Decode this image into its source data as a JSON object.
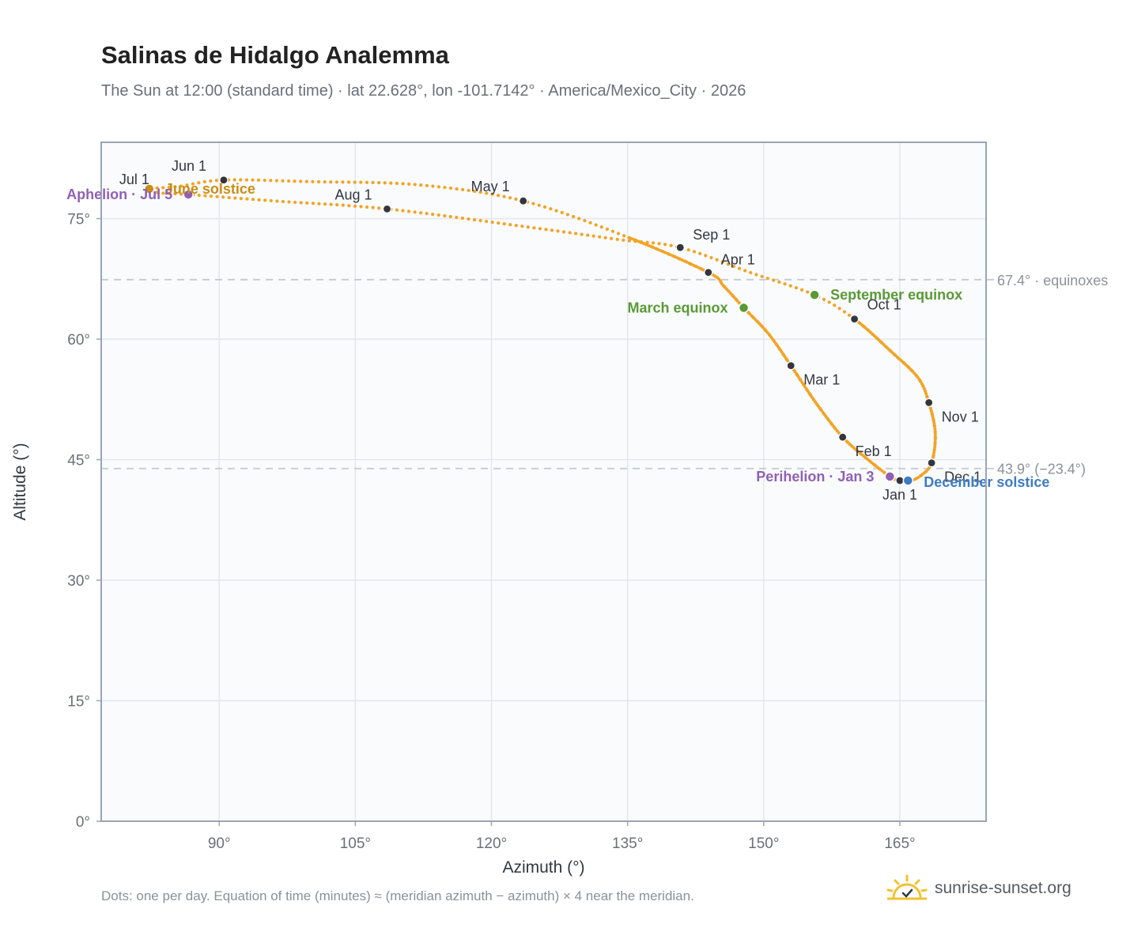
{
  "header": {
    "title": "Salinas de Hidalgo Analemma",
    "subtitle": "The Sun at 12:00 (standard time) · lat 22.628°, lon -101.7142° · America/Mexico_City · 2026"
  },
  "footer": {
    "note": "Dots: one per day. Equation of time (minutes) ≈ (meridian azimuth − azimuth) × 4 near the meridian.",
    "brand": "sunrise-sunset.org",
    "brand_icon": "sun-logo-icon"
  },
  "colors": {
    "curve": "#f2a427",
    "month_dot": "#33363d",
    "equinox": "#5a9a35",
    "december": "#3d7cc4",
    "june": "#c98e12",
    "perihelion": "#9060b5",
    "refline": "#c4cad3",
    "plot_bg": "#f9fbfd",
    "grid": "#e3e8ee",
    "frame": "#9aa5b4"
  },
  "chart_data": {
    "type": "scatter",
    "xlabel": "Azimuth (°)",
    "ylabel": "Altitude (°)",
    "xlim": [
      77.0,
      174.5
    ],
    "ylim": [
      0,
      84.5
    ],
    "x_ticks": [
      90,
      105,
      120,
      135,
      150,
      165
    ],
    "x_tick_labels": [
      "90°",
      "105°",
      "120°",
      "135°",
      "150°",
      "165°"
    ],
    "y_ticks": [
      0,
      15,
      30,
      45,
      60,
      75
    ],
    "y_tick_labels": [
      "0°",
      "15°",
      "30°",
      "45°",
      "60°",
      "75°"
    ],
    "grid": true,
    "path_points": [
      {
        "az": 165.0,
        "alt": 42.3
      },
      {
        "az": 163.9,
        "alt": 42.9
      },
      {
        "az": 161.5,
        "alt": 45.0
      },
      {
        "az": 158.7,
        "alt": 47.8
      },
      {
        "az": 155.8,
        "alt": 52.0
      },
      {
        "az": 153.0,
        "alt": 56.7
      },
      {
        "az": 150.5,
        "alt": 60.7
      },
      {
        "az": 147.8,
        "alt": 63.9
      },
      {
        "az": 145.6,
        "alt": 66.6
      },
      {
        "az": 143.9,
        "alt": 68.3
      },
      {
        "az": 135.0,
        "alt": 72.7
      },
      {
        "az": 123.5,
        "alt": 77.2
      },
      {
        "az": 112.0,
        "alt": 79.2
      },
      {
        "az": 100.0,
        "alt": 79.6
      },
      {
        "az": 90.5,
        "alt": 79.8
      },
      {
        "az": 85.5,
        "alt": 79.0
      },
      {
        "az": 82.3,
        "alt": 78.7
      },
      {
        "az": 83.5,
        "alt": 78.2
      },
      {
        "az": 86.6,
        "alt": 78.0
      },
      {
        "az": 96.0,
        "alt": 77.2
      },
      {
        "az": 108.5,
        "alt": 76.2
      },
      {
        "az": 125.0,
        "alt": 73.8
      },
      {
        "az": 134.0,
        "alt": 72.4
      },
      {
        "az": 140.8,
        "alt": 71.4
      },
      {
        "az": 148.5,
        "alt": 68.3
      },
      {
        "az": 155.6,
        "alt": 65.5
      },
      {
        "az": 160.0,
        "alt": 62.5
      },
      {
        "az": 164.0,
        "alt": 58.5
      },
      {
        "az": 167.0,
        "alt": 55.2
      },
      {
        "az": 168.2,
        "alt": 52.1
      },
      {
        "az": 168.9,
        "alt": 48.3
      },
      {
        "az": 168.5,
        "alt": 44.6
      },
      {
        "az": 167.3,
        "alt": 43.0
      },
      {
        "az": 166.0,
        "alt": 42.3
      },
      {
        "az": 165.0,
        "alt": 42.3
      }
    ],
    "reference_lines": [
      {
        "alt": 67.4,
        "label": "67.4° · equinoxes"
      },
      {
        "alt": 43.9,
        "label": "43.9° (−23.4°)"
      }
    ],
    "month_markers": [
      {
        "label": "Jan 1",
        "az": 165.0,
        "alt": 42.4,
        "pos": "below"
      },
      {
        "label": "Feb 1",
        "az": 158.7,
        "alt": 47.8,
        "pos": "right-below"
      },
      {
        "label": "Mar 1",
        "az": 153.0,
        "alt": 56.7,
        "pos": "right-below"
      },
      {
        "label": "Apr 1",
        "az": 143.9,
        "alt": 68.3,
        "pos": "right-above"
      },
      {
        "label": "May 1",
        "az": 123.5,
        "alt": 77.2,
        "pos": "left-above"
      },
      {
        "label": "Jun 1",
        "az": 90.5,
        "alt": 79.8,
        "pos": "left-above"
      },
      {
        "label": "Jul 1",
        "az": 82.3,
        "alt": 78.7,
        "pos": "left-above"
      },
      {
        "label": "Aug 1",
        "az": 108.5,
        "alt": 76.2,
        "pos": "left-above"
      },
      {
        "label": "Sep 1",
        "az": 140.8,
        "alt": 71.4,
        "pos": "right-above"
      },
      {
        "label": "Oct 1",
        "az": 160.0,
        "alt": 62.5,
        "pos": "right"
      },
      {
        "label": "Nov 1",
        "az": 168.2,
        "alt": 52.1,
        "pos": "right-below"
      },
      {
        "label": "Dec 1",
        "az": 168.5,
        "alt": 44.6,
        "pos": "right-below"
      }
    ],
    "events": [
      {
        "label": "March equinox",
        "az": 147.8,
        "alt": 63.9,
        "color_key": "equinox",
        "anchor": "end"
      },
      {
        "label": "September equinox",
        "az": 155.6,
        "alt": 65.5,
        "color_key": "equinox",
        "anchor": "start"
      },
      {
        "label": "December solstice",
        "az": 165.9,
        "alt": 42.4,
        "color_key": "december",
        "anchor": "start"
      },
      {
        "label": "June solstice",
        "az": 82.3,
        "alt": 78.7,
        "color_key": "june",
        "anchor": "start"
      },
      {
        "label": "Perihelion · Jan 3",
        "az": 163.9,
        "alt": 42.9,
        "color_key": "perihelion",
        "anchor": "end"
      },
      {
        "label": "Aphelion · Jul 5",
        "az": 86.6,
        "alt": 78.0,
        "color_key": "perihelion",
        "anchor": "end"
      }
    ]
  }
}
